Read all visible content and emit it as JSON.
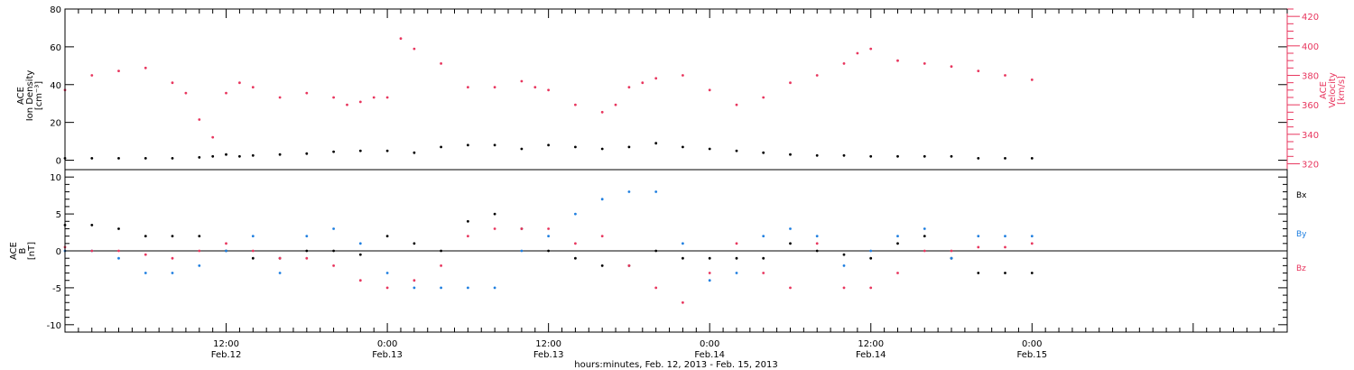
{
  "colors": {
    "black": "#000000",
    "pink": "#e8365e",
    "blue": "#1f7fe0",
    "background": "#ffffff"
  },
  "x_axis": {
    "caption": "hours:minutes, Feb. 12, 2013 - Feb. 15, 2013",
    "range_hours": [
      0,
      91
    ],
    "ticks": [
      {
        "hour": 12,
        "time": "12:00",
        "date": "Feb.12"
      },
      {
        "hour": 24,
        "time": "0:00",
        "date": "Feb.13"
      },
      {
        "hour": 36,
        "time": "12:00",
        "date": "Feb.13"
      },
      {
        "hour": 48,
        "time": "0:00",
        "date": "Feb.14"
      },
      {
        "hour": 60,
        "time": "12:00",
        "date": "Feb.14"
      },
      {
        "hour": 72,
        "time": "0:00",
        "date": "Feb.15"
      }
    ]
  },
  "chart_data": [
    {
      "type": "scatter",
      "panel": "top",
      "left_axis": {
        "label_lines": [
          "ACE",
          "Ion Density",
          "[cm⁻³]"
        ],
        "ylim": [
          -5,
          80
        ],
        "ticks": [
          0,
          20,
          40,
          60,
          80
        ]
      },
      "right_axis": {
        "label_lines": [
          "ACE",
          "Velocity",
          "[km/s]"
        ],
        "ylim": [
          316,
          425
        ],
        "ticks": [
          320,
          340,
          360,
          380,
          400,
          420
        ]
      },
      "series": [
        {
          "axis": "left",
          "color": "black",
          "x_hours": [
            0,
            2,
            4,
            6,
            8,
            10,
            11,
            12,
            13,
            14,
            16,
            18,
            20,
            22,
            24,
            26,
            28,
            30,
            32,
            34,
            36,
            38,
            40,
            42,
            44,
            46,
            48,
            50,
            52,
            54,
            56,
            58,
            60,
            62,
            64,
            66,
            68,
            70,
            72
          ],
          "y": [
            1,
            1,
            1,
            1,
            1,
            1.5,
            2,
            3,
            2,
            2.5,
            3,
            3.5,
            4.5,
            5,
            5,
            4,
            7,
            8,
            8,
            6,
            8,
            7,
            6,
            7,
            9,
            7,
            6,
            5,
            4,
            3,
            2.5,
            2.5,
            2,
            2,
            2,
            2,
            1,
            1,
            1
          ]
        },
        {
          "axis": "right",
          "color": "pink",
          "x_hours": [
            0,
            2,
            4,
            6,
            8,
            9,
            10,
            11,
            12,
            13,
            14,
            16,
            18,
            20,
            21,
            22,
            23,
            24,
            25,
            26,
            28,
            30,
            32,
            34,
            35,
            36,
            38,
            40,
            41,
            42,
            43,
            44,
            46,
            48,
            50,
            52,
            54,
            56,
            58,
            59,
            60,
            62,
            64,
            66,
            68,
            70,
            72
          ],
          "y": [
            370,
            380,
            383,
            385,
            375,
            368,
            350,
            338,
            368,
            375,
            372,
            365,
            368,
            365,
            360,
            362,
            365,
            365,
            405,
            398,
            388,
            372,
            372,
            376,
            372,
            370,
            360,
            355,
            360,
            372,
            375,
            378,
            380,
            370,
            360,
            365,
            375,
            380,
            388,
            395,
            398,
            390,
            388,
            386,
            383,
            380,
            377
          ]
        }
      ]
    },
    {
      "type": "scatter",
      "panel": "bottom",
      "left_axis": {
        "label_lines": [
          "ACE",
          "B",
          "[nT]"
        ],
        "ylim": [
          -11,
          11
        ],
        "ticks": [
          -10,
          -5,
          0,
          5,
          10
        ]
      },
      "zero_line": true,
      "series": [
        {
          "name": "Bx",
          "color": "black",
          "x_hours": [
            0,
            2,
            4,
            6,
            8,
            10,
            12,
            14,
            16,
            18,
            20,
            22,
            24,
            26,
            28,
            30,
            32,
            34,
            36,
            38,
            40,
            42,
            44,
            46,
            48,
            50,
            52,
            54,
            56,
            58,
            60,
            62,
            64,
            66,
            68,
            70,
            72
          ],
          "y": [
            3.5,
            3.5,
            3,
            2,
            2,
            2,
            0,
            -1,
            -1,
            0,
            0,
            -0.5,
            2,
            1,
            0,
            4,
            5,
            3,
            0,
            -1,
            -2,
            -2,
            0,
            -1,
            -1,
            -1,
            -1,
            1,
            0,
            -0.5,
            -1,
            1,
            2,
            -1,
            -3,
            -3,
            -3
          ]
        },
        {
          "name": "By",
          "color": "blue",
          "x_hours": [
            0,
            2,
            4,
            6,
            8,
            10,
            12,
            14,
            16,
            18,
            20,
            22,
            24,
            26,
            28,
            30,
            32,
            34,
            36,
            38,
            40,
            42,
            44,
            46,
            48,
            50,
            52,
            54,
            56,
            58,
            60,
            62,
            64,
            66,
            68,
            70,
            72
          ],
          "y": [
            0,
            0,
            -1,
            -3,
            -3,
            -2,
            0,
            2,
            -3,
            2,
            3,
            1,
            -3,
            -5,
            -5,
            -5,
            -5,
            0,
            2,
            5,
            7,
            8,
            8,
            1,
            -4,
            -3,
            2,
            3,
            2,
            -2,
            0,
            2,
            3,
            -1,
            2,
            2,
            2
          ]
        },
        {
          "name": "Bz",
          "color": "pink",
          "x_hours": [
            0,
            2,
            4,
            6,
            8,
            10,
            12,
            14,
            16,
            18,
            20,
            22,
            24,
            26,
            28,
            30,
            32,
            34,
            36,
            38,
            40,
            42,
            44,
            46,
            48,
            50,
            52,
            54,
            56,
            58,
            60,
            62,
            64,
            66,
            68,
            70,
            72
          ],
          "y": [
            0.5,
            0,
            0,
            -0.5,
            -1,
            0,
            1,
            0,
            -1,
            -1,
            -2,
            -4,
            -5,
            -4,
            -2,
            2,
            3,
            3,
            3,
            1,
            2,
            -2,
            -5,
            -7,
            -3,
            1,
            -3,
            -5,
            1,
            -5,
            -5,
            -3,
            0,
            0,
            0.5,
            0.5,
            1
          ]
        }
      ]
    }
  ]
}
